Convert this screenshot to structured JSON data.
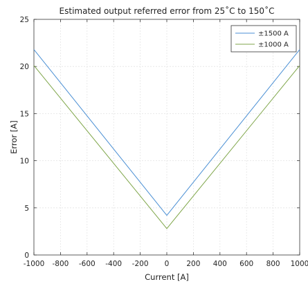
{
  "chart_data": {
    "type": "line",
    "title": "Estimated output referred error from 25˚C to 150˚C",
    "xlabel": "Current [A]",
    "ylabel": "Error [A]",
    "xlim": [
      -1000,
      1000
    ],
    "ylim": [
      0,
      25
    ],
    "xticks": [
      -1000,
      -800,
      -600,
      -400,
      -200,
      0,
      200,
      400,
      600,
      800,
      1000
    ],
    "yticks": [
      0,
      5,
      10,
      15,
      20,
      25
    ],
    "grid": true,
    "legend_position": "top-right",
    "series": [
      {
        "name": "±1500 A",
        "color": "#4a8fd4",
        "x": [
          -1000,
          0,
          1000
        ],
        "y": [
          21.8,
          4.2,
          21.8
        ]
      },
      {
        "name": "±1000 A",
        "color": "#7fa64a",
        "x": [
          -1000,
          0,
          1000
        ],
        "y": [
          20.1,
          2.8,
          20.1
        ]
      }
    ]
  }
}
